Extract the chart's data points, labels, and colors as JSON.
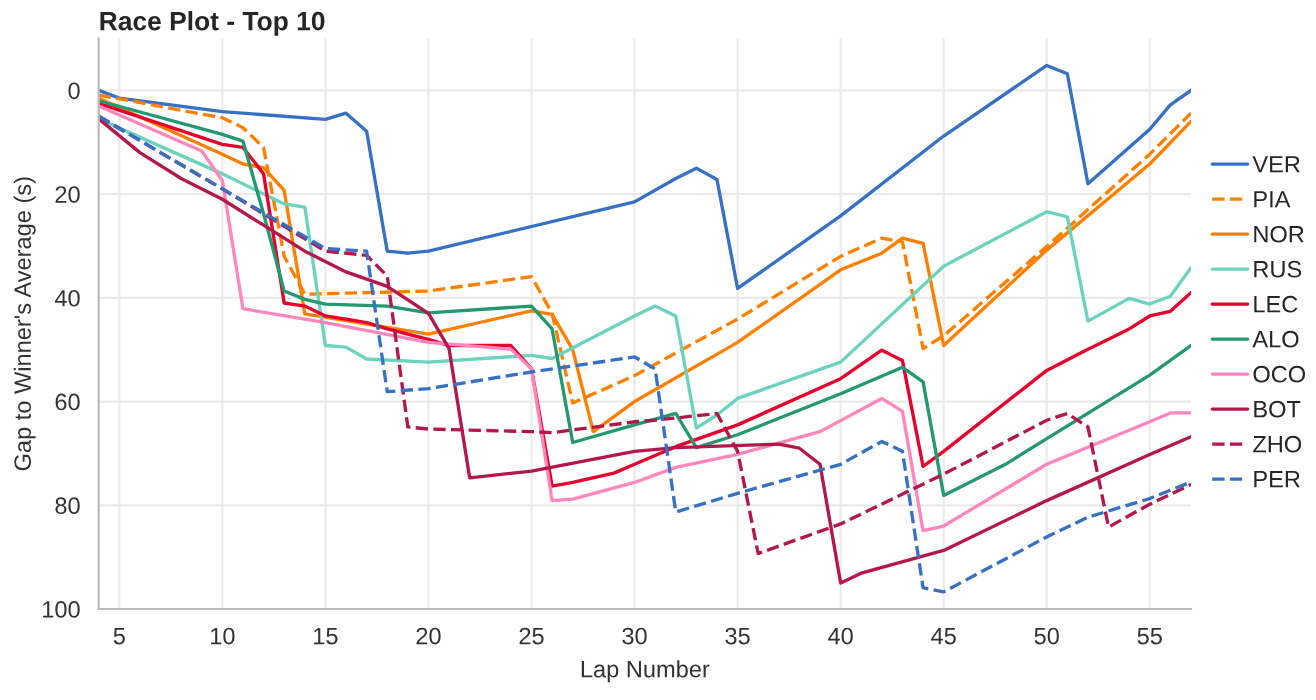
{
  "chart_data": {
    "type": "line",
    "title": "Race Plot - Top 10",
    "xlabel": "Lap Number",
    "ylabel": "Gap to Winner's Average (s)",
    "xlim": [
      4,
      57
    ],
    "xticks": [
      5,
      10,
      15,
      20,
      25,
      30,
      35,
      40,
      45,
      50,
      55
    ],
    "ylim": [
      100,
      -10
    ],
    "yticks": [
      0,
      20,
      40,
      60,
      80,
      100
    ],
    "grid": true,
    "legend": "right",
    "marker": "none",
    "series": [
      {
        "name": "VER",
        "color": "#3671c6",
        "line_style": "solid",
        "x": [
          4,
          5,
          10,
          15,
          16,
          17,
          18,
          19,
          20,
          30,
          32,
          33,
          34,
          35,
          40,
          45,
          50,
          51,
          52,
          55,
          56,
          57
        ],
        "values": [
          0,
          1.5,
          4.1,
          5.6,
          4.4,
          7.9,
          31.0,
          31.4,
          31.0,
          21.5,
          17,
          15,
          17.2,
          38.2,
          24.2,
          8.8,
          -4.8,
          -3.2,
          18,
          7.5,
          2.8,
          0
        ]
      },
      {
        "name": "PIA",
        "color": "#ff8000",
        "line_style": "dashed",
        "x": [
          4,
          10,
          11,
          12,
          13,
          14,
          20,
          25,
          26,
          27,
          30,
          35,
          40,
          42,
          43,
          44,
          45,
          50,
          55,
          57
        ],
        "values": [
          0.9,
          5.3,
          7.2,
          11,
          32,
          39.3,
          38.7,
          35.9,
          43,
          60.3,
          55,
          44.1,
          32,
          28.5,
          29.2,
          49.8,
          47.3,
          30.1,
          12.3,
          4.4
        ]
      },
      {
        "name": "NOR",
        "color": "#ff8000",
        "line_style": "solid",
        "x": [
          4,
          10,
          11,
          12,
          13,
          14,
          20,
          25,
          26,
          27,
          28,
          30,
          35,
          40,
          42,
          43,
          44,
          45,
          50,
          55,
          57
        ],
        "values": [
          1.5,
          12.3,
          14.2,
          14.9,
          19.3,
          43.1,
          47,
          42.5,
          43.2,
          50,
          65.8,
          60,
          48.6,
          34.6,
          31.4,
          28.5,
          29.5,
          49.2,
          30.8,
          14.2,
          6
        ]
      },
      {
        "name": "RUS",
        "color": "#6cd3bf",
        "line_style": "solid",
        "x": [
          4,
          10,
          13,
          14,
          15,
          16,
          17,
          20,
          25,
          26,
          30,
          31,
          32,
          33,
          34,
          35,
          40,
          45,
          46,
          50,
          51,
          52,
          54,
          55,
          56,
          57
        ],
        "values": [
          5.5,
          16.1,
          21.9,
          22.5,
          49.2,
          49.5,
          51.8,
          52.4,
          51.1,
          51.7,
          43.5,
          41.6,
          43.5,
          65.1,
          62.6,
          59.4,
          52.4,
          33.9,
          31.8,
          23.4,
          24.4,
          44.5,
          40.1,
          41.2,
          39.7,
          34.2
        ]
      },
      {
        "name": "LEC",
        "color": "#e8002d",
        "line_style": "solid",
        "x": [
          4,
          10,
          11,
          12,
          13,
          14,
          15,
          16,
          17,
          18,
          20,
          21,
          24,
          25,
          26,
          27,
          29,
          30,
          32,
          35,
          40,
          42,
          43,
          44,
          45,
          50,
          52,
          53,
          54,
          55,
          56,
          57
        ],
        "values": [
          2.5,
          10.4,
          11,
          16.1,
          41,
          41.6,
          43.5,
          44.1,
          44.8,
          46,
          48,
          49.2,
          49.2,
          53.7,
          76.3,
          75.6,
          73.8,
          72.1,
          68.7,
          64.5,
          55.6,
          50.1,
          52.1,
          72.5,
          69.6,
          54,
          49.9,
          48,
          46,
          43.5,
          42.6,
          39
        ]
      },
      {
        "name": "ALO",
        "color": "#229971",
        "line_style": "solid",
        "x": [
          4,
          10,
          11,
          12,
          13,
          14,
          15,
          18,
          20,
          25,
          26,
          27,
          30,
          32,
          33,
          35,
          40,
          43,
          44,
          45,
          48,
          49,
          55,
          57
        ],
        "values": [
          2,
          8.5,
          9.8,
          23.8,
          38.7,
          40.3,
          41.2,
          41.6,
          42.9,
          41.6,
          46,
          67.9,
          64.5,
          62.3,
          68.9,
          66.4,
          58.5,
          53.4,
          56.2,
          78.1,
          72.1,
          69.6,
          54.9,
          49.2
        ]
      },
      {
        "name": "OCO",
        "color": "#ff87bc",
        "line_style": "solid",
        "x": [
          4,
          9,
          10,
          11,
          15,
          20,
          24,
          25,
          26,
          27,
          30,
          32,
          35,
          39,
          42,
          43,
          44,
          45,
          50,
          55,
          56,
          57
        ],
        "values": [
          3,
          11.7,
          17.4,
          42.1,
          44.8,
          48.6,
          49.9,
          53.7,
          79.1,
          78.8,
          75.6,
          72.7,
          70.2,
          65.8,
          59.4,
          61.9,
          84.9,
          84,
          72.1,
          63.9,
          62.2,
          62.2
        ]
      },
      {
        "name": "BOT",
        "color": "#b6174a",
        "line_style": "solid",
        "x": [
          4,
          6,
          8,
          10,
          12,
          14,
          16,
          18,
          20,
          21,
          22,
          25,
          30,
          32,
          37,
          38,
          39,
          40,
          41,
          45,
          50,
          55,
          57
        ],
        "values": [
          5.5,
          12,
          17,
          21,
          26,
          31,
          35,
          37.8,
          43,
          49.8,
          74.7,
          73.4,
          69.6,
          68.9,
          68.2,
          69,
          72.1,
          95,
          93.1,
          88.7,
          79.1,
          70.2,
          66.8
        ]
      },
      {
        "name": "ZHO",
        "color": "#b6174a",
        "line_style": "dashed",
        "x": [
          4,
          10,
          15,
          17,
          18,
          19,
          20,
          25,
          26,
          30,
          31,
          34,
          35,
          36,
          40,
          45,
          50,
          51,
          52,
          53,
          55,
          57
        ],
        "values": [
          5,
          19,
          31,
          31.8,
          35.8,
          64.9,
          65.3,
          65.8,
          66,
          63.9,
          63.6,
          62.3,
          69.6,
          89.3,
          83.6,
          74,
          63.6,
          62.3,
          64.9,
          84.2,
          79.8,
          76
        ]
      },
      {
        "name": "PER",
        "color": "#3671c6",
        "line_style": "dashed",
        "x": [
          4,
          10,
          15,
          17,
          18,
          20,
          25,
          30,
          31,
          32,
          35,
          40,
          42,
          43,
          44,
          45,
          50,
          52,
          55,
          57
        ],
        "values": [
          5,
          19,
          30.5,
          31,
          58.1,
          57.5,
          54.3,
          51.4,
          53.7,
          81.3,
          77.7,
          72.1,
          67.7,
          69.6,
          95.9,
          96.7,
          86.1,
          82.3,
          78.7,
          75.5
        ]
      }
    ]
  }
}
